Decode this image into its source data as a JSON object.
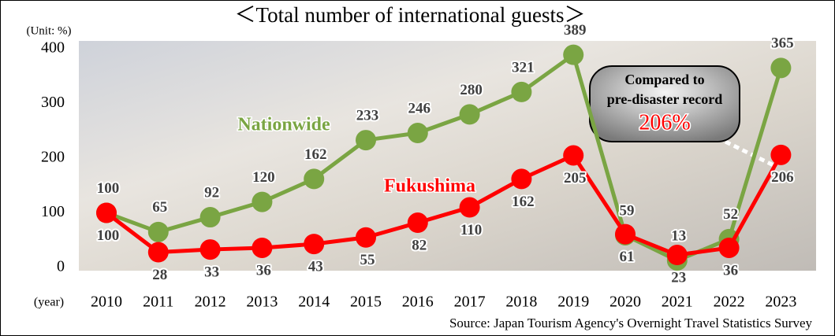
{
  "chart_data": {
    "type": "line",
    "title": "＜Total number of international guests＞",
    "y_label": "(Unit: %)",
    "x_label": "(year)",
    "source": "Source: Japan Tourism Agency's Overnight Travel Statistics Survey",
    "annotations": [
      "Compared to",
      "pre-disaster record",
      "206%"
    ],
    "categories": [
      "2010",
      "2011",
      "2012",
      "2013",
      "2014",
      "2015",
      "2016",
      "2017",
      "2018",
      "2019",
      "2020",
      "2021",
      "2022",
      "2023"
    ],
    "series": [
      {
        "name": "Nationwide",
        "color": "#7aa543",
        "values": [
          100,
          65,
          92,
          120,
          162,
          233,
          246,
          280,
          321,
          389,
          59,
          13,
          52,
          365
        ]
      },
      {
        "name": "Fukushima",
        "color": "#ff0000",
        "values": [
          100,
          28,
          33,
          36,
          43,
          55,
          82,
          110,
          162,
          205,
          61,
          23,
          36,
          206
        ]
      }
    ],
    "ylim": [
      0,
      400
    ],
    "yticks": [
      0,
      100,
      200,
      300,
      400
    ],
    "grid": false
  }
}
